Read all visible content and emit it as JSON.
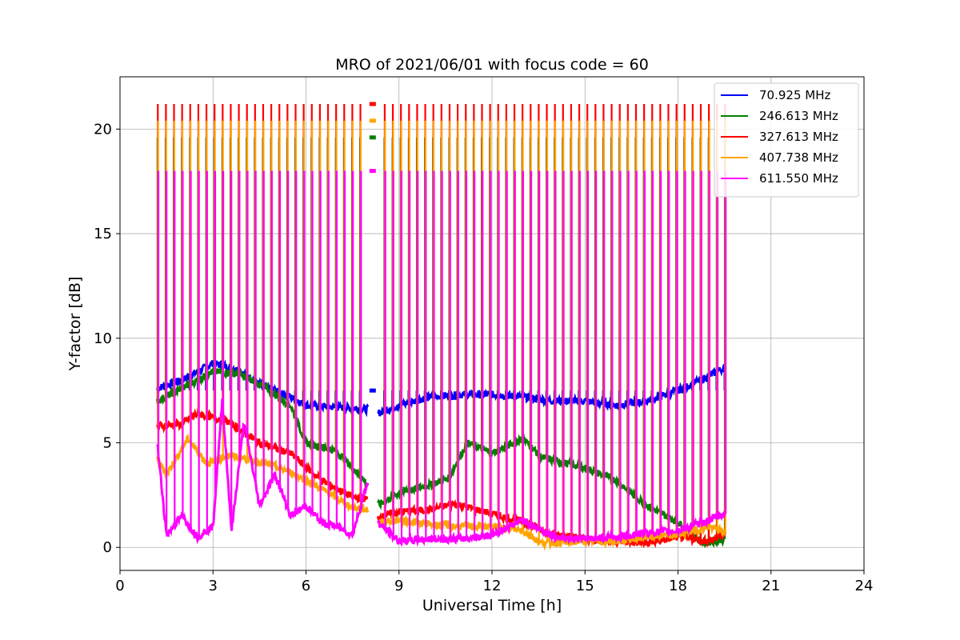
{
  "chart_data": {
    "type": "line",
    "title": "MRO of 2021/06/01 with focus code = 60",
    "xlabel": "Universal Time [h]",
    "ylabel": "Y-factor [dB]",
    "xlim": [
      0,
      24
    ],
    "ylim": [
      -1.1,
      22.5
    ],
    "xticks": [
      0,
      3,
      6,
      9,
      12,
      15,
      18,
      21,
      24
    ],
    "yticks": [
      0,
      5,
      10,
      15,
      20
    ],
    "grid": true,
    "legend_position": "top-right",
    "spike_start_hour": 1.2,
    "spike_end_hour": 19.5,
    "spike_count": 70,
    "gap_hours": [
      8.0,
      8.3
    ],
    "series": [
      {
        "name": "70.925 MHz",
        "color": "#0000ff",
        "spike_peak": 7.5,
        "baseline": [
          [
            1.2,
            7.6
          ],
          [
            2.0,
            8.0
          ],
          [
            3.0,
            8.8
          ],
          [
            3.8,
            8.5
          ],
          [
            4.5,
            7.8
          ],
          [
            5.5,
            7.2
          ],
          [
            6.0,
            6.8
          ],
          [
            7.0,
            6.7
          ],
          [
            8.0,
            6.6
          ],
          [
            8.3,
            6.4
          ],
          [
            9.0,
            6.8
          ],
          [
            10.0,
            7.2
          ],
          [
            11.0,
            7.3
          ],
          [
            12.0,
            7.3
          ],
          [
            13.0,
            7.2
          ],
          [
            14.0,
            7.0
          ],
          [
            15.0,
            7.0
          ],
          [
            16.0,
            6.8
          ],
          [
            17.0,
            7.0
          ],
          [
            18.0,
            7.5
          ],
          [
            19.0,
            8.2
          ],
          [
            19.5,
            8.6
          ]
        ],
        "floor": [
          [
            1.2,
            0.3
          ],
          [
            8.0,
            0.3
          ],
          [
            19.5,
            0.3
          ]
        ]
      },
      {
        "name": "246.613 MHz",
        "color": "#008000",
        "spike_peak": 19.6,
        "baseline": [
          [
            1.2,
            7.0
          ],
          [
            2.0,
            7.6
          ],
          [
            3.0,
            8.4
          ],
          [
            3.8,
            8.3
          ],
          [
            4.5,
            7.8
          ],
          [
            5.5,
            6.8
          ],
          [
            6.0,
            5.0
          ],
          [
            7.0,
            4.6
          ],
          [
            8.0,
            3.0
          ],
          [
            8.3,
            2.0
          ],
          [
            9.0,
            2.6
          ],
          [
            10.0,
            3.0
          ],
          [
            10.6,
            3.3
          ],
          [
            11.2,
            5.0
          ],
          [
            12.0,
            4.5
          ],
          [
            13.0,
            5.2
          ],
          [
            13.6,
            4.3
          ],
          [
            15.0,
            3.8
          ],
          [
            16.0,
            3.2
          ],
          [
            17.0,
            2.0
          ],
          [
            18.0,
            1.2
          ],
          [
            18.8,
            0.2
          ],
          [
            19.5,
            0.4
          ]
        ],
        "floor": [
          [
            1.2,
            7.0
          ],
          [
            19.5,
            0.4
          ]
        ]
      },
      {
        "name": "327.613 MHz",
        "color": "#ff0000",
        "spike_peak": 21.2,
        "baseline": [
          [
            1.2,
            5.8
          ],
          [
            2.0,
            5.9
          ],
          [
            2.5,
            6.4
          ],
          [
            3.5,
            6.0
          ],
          [
            4.5,
            5.0
          ],
          [
            5.5,
            4.5
          ],
          [
            6.5,
            3.2
          ],
          [
            7.5,
            2.4
          ],
          [
            8.0,
            2.3
          ],
          [
            8.3,
            1.4
          ],
          [
            9.0,
            1.7
          ],
          [
            10.0,
            1.8
          ],
          [
            10.8,
            2.1
          ],
          [
            12.0,
            1.6
          ],
          [
            13.0,
            1.2
          ],
          [
            14.0,
            0.6
          ],
          [
            15.0,
            0.4
          ],
          [
            16.0,
            0.3
          ],
          [
            17.0,
            0.2
          ],
          [
            18.0,
            0.5
          ],
          [
            19.0,
            0.3
          ],
          [
            19.5,
            0.6
          ]
        ],
        "floor": [
          [
            1.2,
            5.8
          ],
          [
            19.5,
            0.6
          ]
        ]
      },
      {
        "name": "407.738 MHz",
        "color": "#ffa500",
        "spike_peak": 20.4,
        "baseline": [
          [
            1.2,
            4.2
          ],
          [
            1.5,
            3.5
          ],
          [
            2.2,
            5.2
          ],
          [
            2.8,
            4.0
          ],
          [
            3.5,
            4.4
          ],
          [
            4.5,
            4.1
          ],
          [
            5.5,
            3.6
          ],
          [
            6.5,
            2.8
          ],
          [
            7.5,
            1.9
          ],
          [
            8.0,
            1.8
          ],
          [
            8.3,
            1.2
          ],
          [
            9.0,
            1.3
          ],
          [
            10.0,
            1.1
          ],
          [
            11.0,
            1.0
          ],
          [
            12.0,
            1.0
          ],
          [
            13.0,
            0.8
          ],
          [
            13.6,
            0.2
          ],
          [
            15.0,
            0.3
          ],
          [
            16.0,
            0.3
          ],
          [
            17.0,
            0.5
          ],
          [
            18.0,
            0.6
          ],
          [
            19.0,
            1.0
          ],
          [
            19.5,
            0.7
          ]
        ],
        "floor": [
          [
            1.2,
            4.2
          ],
          [
            19.5,
            0.7
          ]
        ]
      },
      {
        "name": "611.550 MHz",
        "color": "#ff00ff",
        "spike_peak": 18.0,
        "baseline": [
          [
            1.2,
            5.0
          ],
          [
            1.5,
            0.6
          ],
          [
            2.0,
            1.5
          ],
          [
            2.5,
            0.5
          ],
          [
            3.0,
            1.0
          ],
          [
            3.3,
            7.0
          ],
          [
            3.6,
            0.8
          ],
          [
            4.0,
            6.0
          ],
          [
            4.5,
            2.0
          ],
          [
            5.0,
            3.5
          ],
          [
            5.5,
            1.5
          ],
          [
            6.0,
            2.0
          ],
          [
            6.5,
            1.2
          ],
          [
            7.0,
            1.0
          ],
          [
            7.5,
            0.6
          ],
          [
            8.0,
            3.2
          ],
          [
            8.3,
            1.2
          ],
          [
            9.0,
            0.3
          ],
          [
            10.0,
            0.4
          ],
          [
            11.0,
            0.4
          ],
          [
            12.0,
            0.6
          ],
          [
            13.0,
            1.3
          ],
          [
            14.0,
            0.5
          ],
          [
            15.0,
            0.4
          ],
          [
            16.0,
            0.5
          ],
          [
            17.0,
            0.7
          ],
          [
            18.0,
            0.8
          ],
          [
            19.0,
            1.3
          ],
          [
            19.5,
            1.6
          ]
        ],
        "floor": [
          [
            1.2,
            5.0
          ],
          [
            19.5,
            1.6
          ]
        ]
      }
    ]
  }
}
